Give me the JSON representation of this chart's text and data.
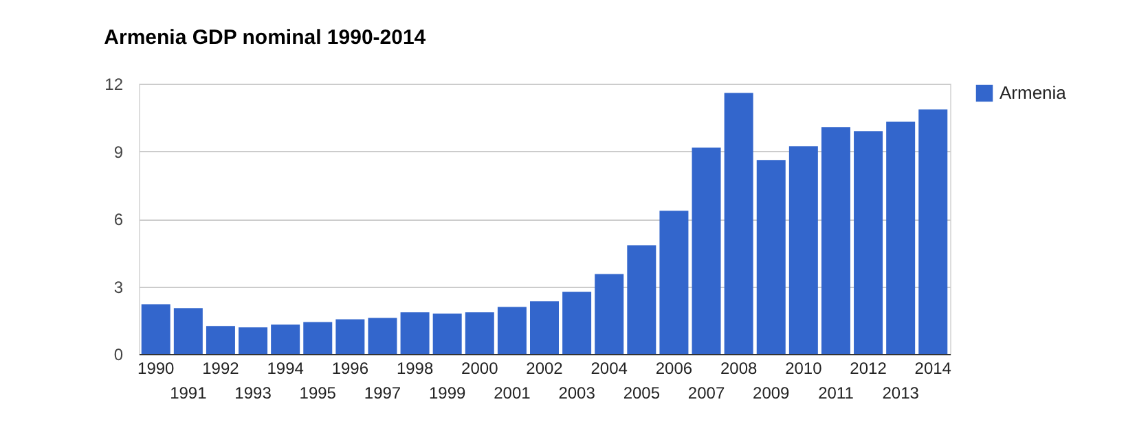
{
  "chart_data": {
    "type": "bar",
    "title": "Armenia GDP nominal 1990-2014",
    "categories": [
      "1990",
      "1991",
      "1992",
      "1993",
      "1994",
      "1995",
      "1996",
      "1997",
      "1998",
      "1999",
      "2000",
      "2001",
      "2002",
      "2003",
      "2004",
      "2005",
      "2006",
      "2007",
      "2008",
      "2009",
      "2010",
      "2011",
      "2012",
      "2013",
      "2014"
    ],
    "series": [
      {
        "name": "Armenia",
        "color": "#3366cc",
        "values": [
          2.21,
          2.03,
          1.24,
          1.18,
          1.3,
          1.42,
          1.54,
          1.6,
          1.85,
          1.79,
          1.85,
          2.09,
          2.34,
          2.76,
          3.55,
          4.83,
          6.36,
          9.16,
          11.59,
          8.61,
          9.22,
          10.07,
          9.89,
          10.31,
          10.86
        ]
      }
    ],
    "ylim": [
      0,
      12
    ],
    "yticks": [
      0,
      3,
      6,
      9,
      12
    ],
    "grid": "y",
    "legend": "top right"
  }
}
